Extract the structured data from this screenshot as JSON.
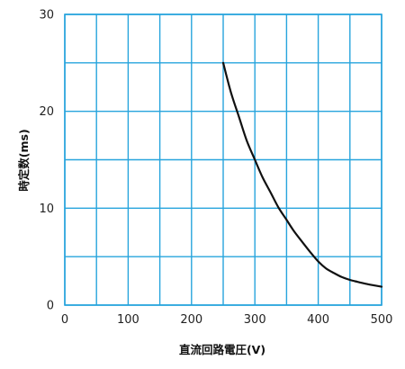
{
  "chart_data": {
    "type": "line",
    "title": "",
    "xlabel": "直流回路電圧(V)",
    "ylabel": "時定数(ms)",
    "xlim": [
      0,
      500
    ],
    "ylim": [
      0,
      30
    ],
    "x_ticks": [
      0,
      100,
      200,
      300,
      400,
      500
    ],
    "y_ticks": [
      0,
      10,
      20,
      30
    ],
    "x_grid_step": 50,
    "y_grid_step": 5,
    "grid": true,
    "legend": "none",
    "colors": {
      "grid": "#27a4dd",
      "line": "#111111"
    },
    "series": [
      {
        "x": [
          250,
          262,
          275,
          287,
          300,
          312,
          325,
          337,
          350,
          362,
          375,
          387,
          400,
          412,
          425,
          437,
          450,
          462,
          475,
          487,
          500
        ],
        "y": [
          25.0,
          22.0,
          19.4,
          17.0,
          15.0,
          13.2,
          11.6,
          10.1,
          8.8,
          7.6,
          6.5,
          5.5,
          4.5,
          3.8,
          3.3,
          2.9,
          2.6,
          2.4,
          2.2,
          2.05,
          1.9
        ]
      }
    ]
  }
}
